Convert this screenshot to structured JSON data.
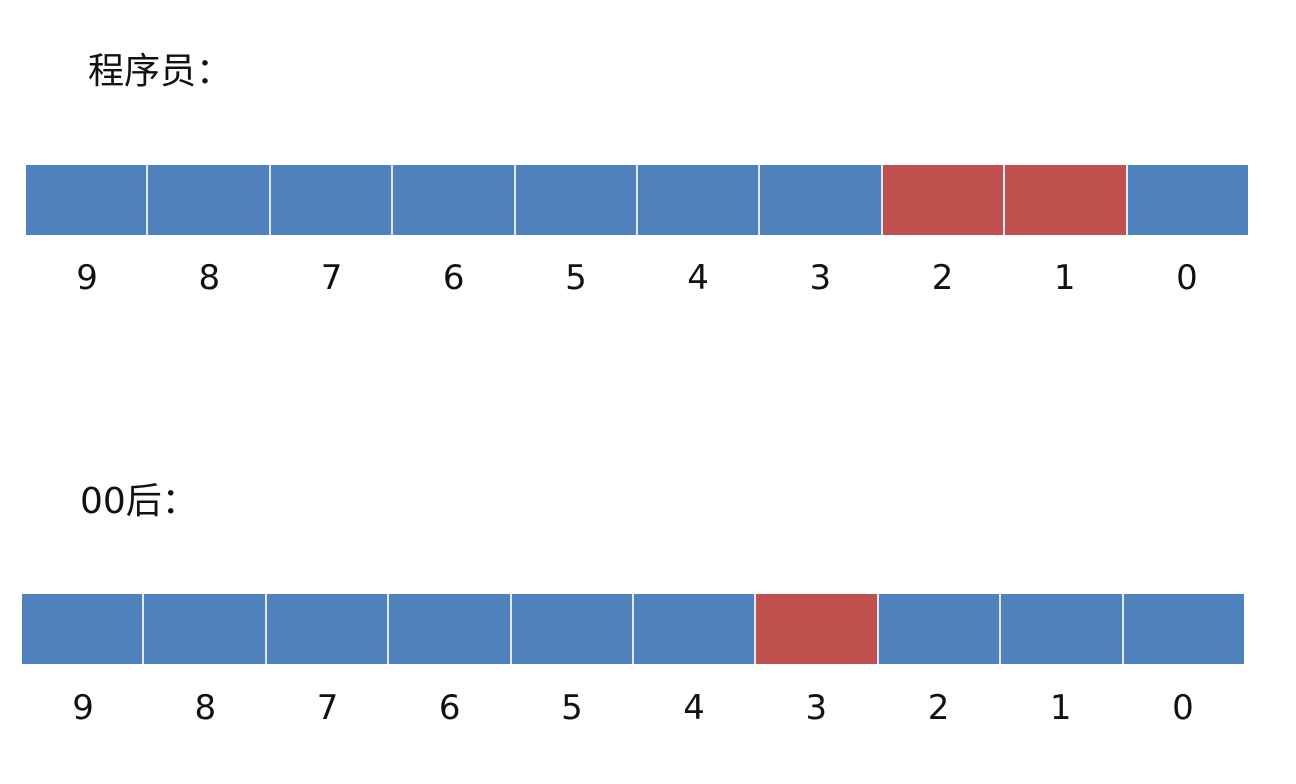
{
  "colors": {
    "blue": "#4f81bd",
    "red": "#c0504d"
  },
  "sections": [
    {
      "label": "程序员：",
      "cells": [
        "blue",
        "blue",
        "blue",
        "blue",
        "blue",
        "blue",
        "blue",
        "red",
        "red",
        "blue"
      ],
      "numbers": [
        "9",
        "8",
        "7",
        "6",
        "5",
        "4",
        "3",
        "2",
        "1",
        "0"
      ]
    },
    {
      "label": "00后：",
      "cells": [
        "blue",
        "blue",
        "blue",
        "blue",
        "blue",
        "blue",
        "red",
        "blue",
        "blue",
        "blue"
      ],
      "numbers": [
        "9",
        "8",
        "7",
        "6",
        "5",
        "4",
        "3",
        "2",
        "1",
        "0"
      ]
    }
  ]
}
